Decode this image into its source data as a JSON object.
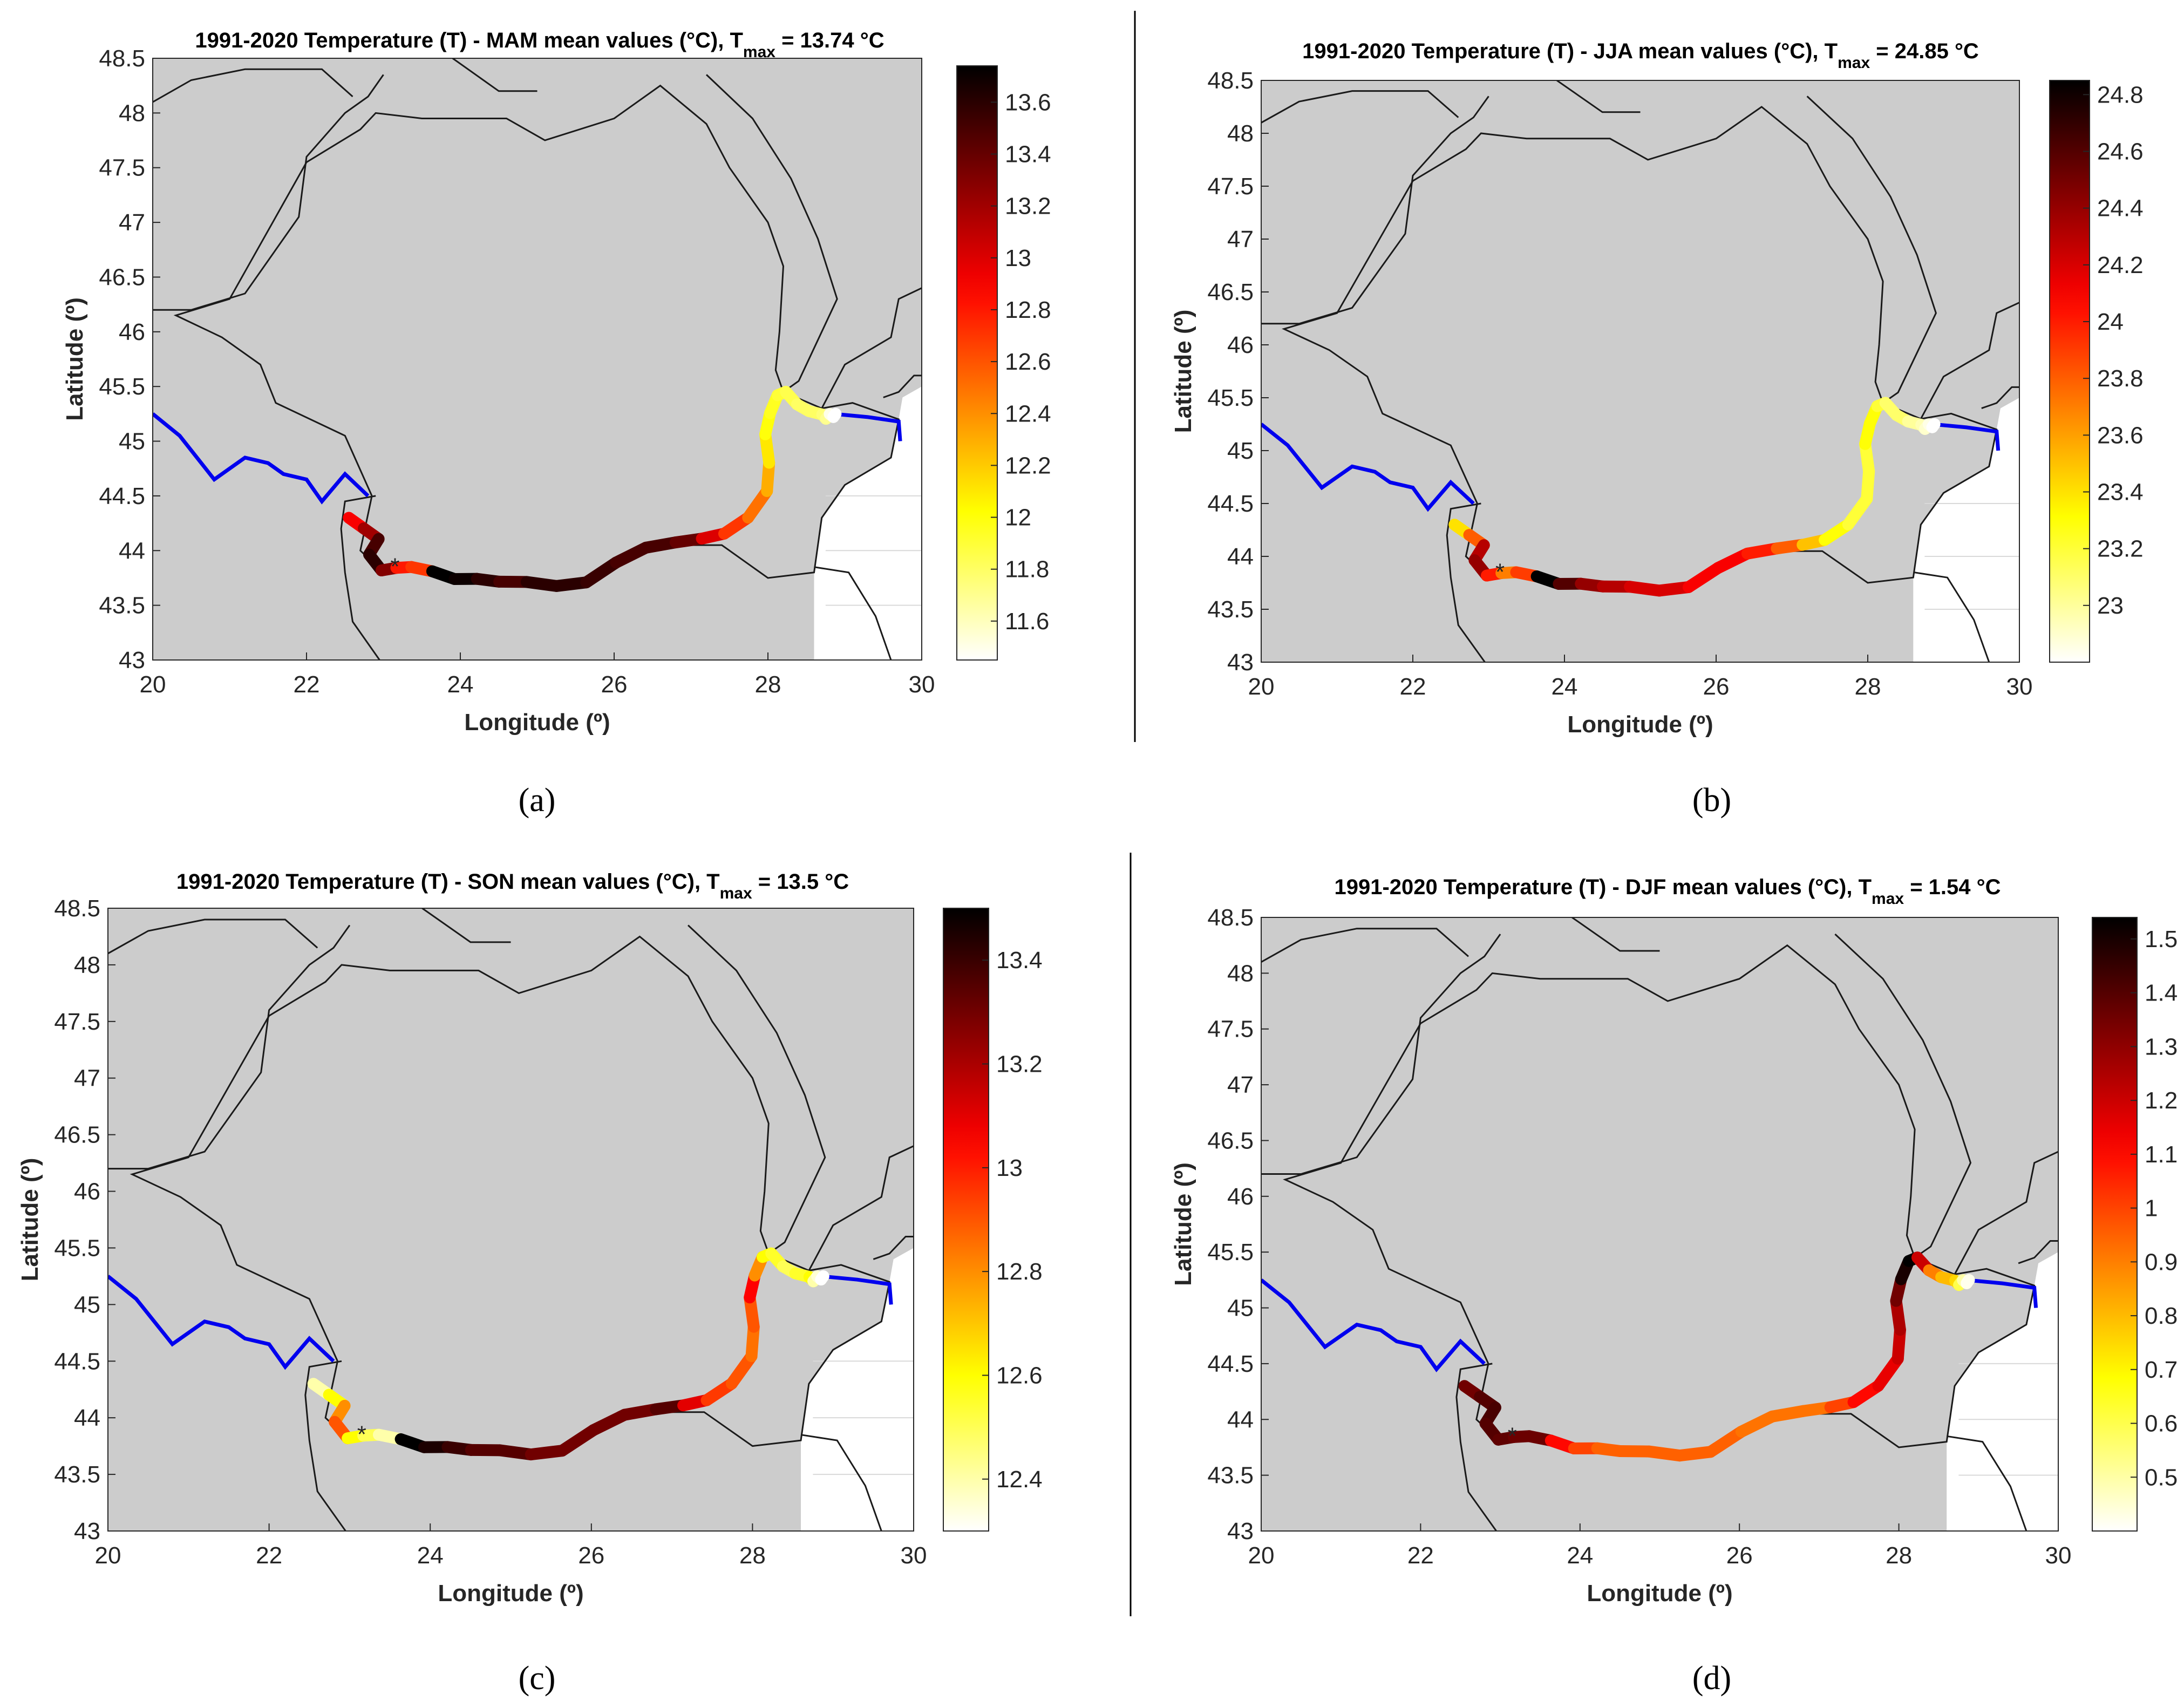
{
  "chart_data": [
    {
      "type": "scatter",
      "panel_id": "a",
      "title": "1991-2020 Temperature (T) - MAM mean values (°C), T",
      "title_sub": "max",
      "title_tail": " = 13.74 °C",
      "tmax": 13.74,
      "xlabel": "Longitude (º)",
      "ylabel": "Latitude (º)",
      "xlim": [
        20,
        30
      ],
      "ylim": [
        43,
        48.5
      ],
      "xticks": [
        "20",
        "22",
        "24",
        "26",
        "28",
        "30"
      ],
      "yticks": [
        "43",
        "43.5",
        "44",
        "44.5",
        "45",
        "45.5",
        "46",
        "46.5",
        "47",
        "47.5",
        "48",
        "48.5"
      ],
      "colorbar": {
        "min": 11.45,
        "max": 13.74,
        "ticks": [
          "11.6",
          "11.8",
          "12",
          "12.2",
          "12.4",
          "12.6",
          "12.8",
          "13",
          "13.2",
          "13.4",
          "13.6"
        ]
      },
      "danube_values": [
        12.9,
        13.2,
        13.5,
        13.6,
        13.3,
        12.8,
        12.7,
        13.74,
        13.7,
        13.6,
        13.5,
        13.6,
        13.6,
        13.55,
        13.5,
        13.5,
        13.4,
        13.0,
        12.7,
        12.5,
        12.3,
        12.1,
        12.0,
        11.95,
        11.9,
        11.85,
        11.8,
        11.8,
        11.75,
        11.7,
        11.5,
        11.45
      ],
      "caption": "(a)"
    },
    {
      "type": "scatter",
      "panel_id": "b",
      "title": "1991-2020 Temperature (T) - JJA mean values (°C), T",
      "title_sub": "max",
      "title_tail": " = 24.85 °C",
      "tmax": 24.85,
      "xlabel": "Longitude (º)",
      "ylabel": "Latitude (º)",
      "xlim": [
        20,
        30
      ],
      "ylim": [
        43,
        48.5
      ],
      "xticks": [
        "20",
        "22",
        "24",
        "26",
        "28",
        "30"
      ],
      "yticks": [
        "43",
        "43.5",
        "44",
        "44.5",
        "45",
        "45.5",
        "46",
        "46.5",
        "47",
        "47.5",
        "48",
        "48.5"
      ],
      "colorbar": {
        "min": 22.8,
        "max": 24.85,
        "ticks": [
          "23",
          "23.2",
          "23.4",
          "23.6",
          "23.8",
          "24",
          "24.2",
          "24.4",
          "24.6",
          "24.8"
        ]
      },
      "danube_values": [
        23.4,
        23.8,
        24.3,
        24.4,
        24.0,
        23.7,
        23.9,
        24.85,
        24.6,
        24.4,
        24.3,
        24.2,
        24.2,
        24.1,
        24.1,
        24.0,
        23.8,
        23.5,
        23.3,
        23.2,
        23.2,
        23.2,
        23.3,
        23.3,
        23.2,
        23.1,
        23.1,
        23.0,
        22.95,
        22.9,
        22.85,
        22.8
      ],
      "caption": "(b)"
    },
    {
      "type": "scatter",
      "panel_id": "c",
      "title": "1991-2020 Temperature (T) - SON mean values (°C), T",
      "title_sub": "max",
      "title_tail": " = 13.5 °C",
      "tmax": 13.5,
      "xlabel": "Longitude (º)",
      "ylabel": "Latitude (º)",
      "xlim": [
        20,
        30
      ],
      "ylim": [
        43,
        48.5
      ],
      "xticks": [
        "20",
        "22",
        "24",
        "26",
        "28",
        "30"
      ],
      "yticks": [
        "43",
        "43.5",
        "44",
        "44.5",
        "45",
        "45.5",
        "46",
        "46.5",
        "47",
        "47.5",
        "48",
        "48.5"
      ],
      "colorbar": {
        "min": 12.3,
        "max": 13.5,
        "ticks": [
          "12.4",
          "12.6",
          "12.8",
          "13",
          "13.2",
          "13.4"
        ]
      },
      "danube_values": [
        12.4,
        12.6,
        12.8,
        12.9,
        12.6,
        12.5,
        12.4,
        13.5,
        13.45,
        13.4,
        13.35,
        13.35,
        13.3,
        13.3,
        13.3,
        13.3,
        13.35,
        13.1,
        12.95,
        12.9,
        12.85,
        12.9,
        13.05,
        12.8,
        12.6,
        12.55,
        12.5,
        12.55,
        12.6,
        12.4,
        12.35,
        12.3
      ],
      "caption": "(c)"
    },
    {
      "type": "scatter",
      "panel_id": "d",
      "title": "1991-2020 Temperature (T) - DJF mean values (°C), T",
      "title_sub": "max",
      "title_tail": " = 1.54 °C",
      "tmax": 1.54,
      "xlabel": "Longitude (º)",
      "ylabel": "Latitude (º)",
      "xlim": [
        20,
        30
      ],
      "ylim": [
        43,
        48.5
      ],
      "xticks": [
        "20",
        "22",
        "24",
        "26",
        "28",
        "30"
      ],
      "yticks": [
        "43",
        "43.5",
        "44",
        "44.5",
        "45",
        "45.5",
        "46",
        "46.5",
        "47",
        "47.5",
        "48",
        "48.5"
      ],
      "colorbar": {
        "min": 0.4,
        "max": 1.54,
        "ticks": [
          "0.5",
          "0.6",
          "0.7",
          "0.8",
          "0.9",
          "1",
          "1.1",
          "1.2",
          "1.3",
          "1.4",
          "1.5"
        ]
      },
      "danube_values": [
        1.35,
        1.4,
        1.42,
        1.4,
        1.38,
        1.36,
        1.36,
        1.1,
        1.0,
        0.95,
        0.95,
        0.95,
        0.95,
        0.95,
        0.92,
        0.92,
        0.92,
        1.0,
        1.1,
        1.15,
        1.2,
        1.25,
        1.35,
        1.5,
        1.54,
        1.2,
        0.9,
        0.8,
        0.75,
        0.6,
        0.5,
        0.42
      ],
      "caption": "(d)"
    }
  ],
  "colors": {
    "land": "#cccccc",
    "border": "#1a1a1a",
    "river_upstream": "#0000ee",
    "grid": "#d9d9d9"
  }
}
